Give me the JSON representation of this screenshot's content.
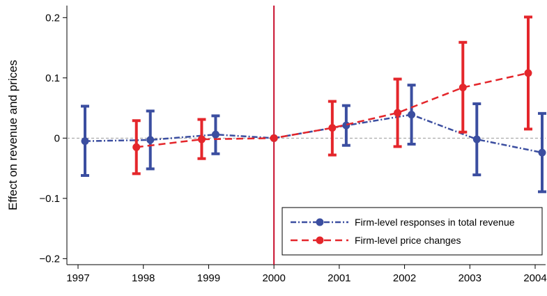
{
  "chart_data": {
    "type": "line",
    "ylabel": "Effect on revenue and prices",
    "xlabel": "",
    "x": [
      1997,
      1998,
      1999,
      2000,
      2001,
      2002,
      2003,
      2004
    ],
    "x_tick_labels": [
      "1997",
      "1998",
      "1999",
      "2000",
      "2001",
      "2002",
      "2003",
      "2004"
    ],
    "ylim": [
      -0.21,
      0.22
    ],
    "y_ticks": [
      0.2,
      0.1,
      0,
      -0.1,
      -0.2
    ],
    "y_tick_labels": [
      "0.2",
      "0.1",
      "0",
      "−0.1",
      "−0.2"
    ],
    "reference_year": 2000,
    "zero_line": true,
    "grid": false,
    "legend_position": "bottom-right",
    "series": [
      {
        "name": "Firm-level responses in total revenue",
        "color": "#3b4ea0",
        "line_style": "dash-dot",
        "x": [
          1997,
          1998,
          1999,
          2000,
          2001,
          2002,
          2003,
          2004
        ],
        "values": [
          -0.005,
          -0.003,
          0.006,
          0.0,
          0.021,
          0.039,
          -0.002,
          -0.024
        ],
        "ci_low": [
          -0.062,
          -0.051,
          -0.026,
          0.0,
          -0.012,
          -0.01,
          -0.061,
          -0.089
        ],
        "ci_high": [
          0.053,
          0.045,
          0.037,
          0.0,
          0.054,
          0.088,
          0.057,
          0.041
        ]
      },
      {
        "name": "Firm-level price changes",
        "color": "#e4262b",
        "line_style": "dashed",
        "x": [
          1998,
          1999,
          2000,
          2001,
          2002,
          2003,
          2004
        ],
        "values": [
          -0.015,
          -0.002,
          0.0,
          0.017,
          0.042,
          0.084,
          0.108
        ],
        "ci_low": [
          -0.059,
          -0.034,
          0.0,
          -0.028,
          -0.014,
          0.01,
          0.015
        ],
        "ci_high": [
          0.029,
          0.031,
          0.0,
          0.061,
          0.098,
          0.159,
          0.201
        ]
      }
    ]
  }
}
